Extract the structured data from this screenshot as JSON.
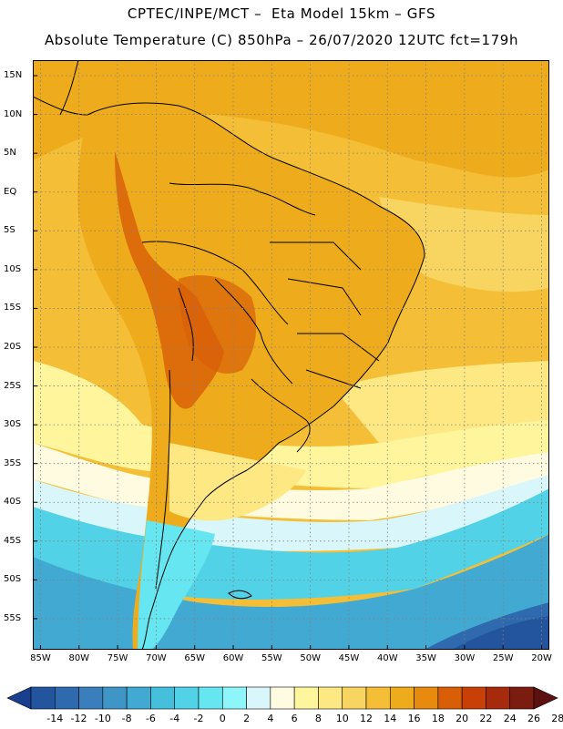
{
  "title": {
    "line1": "CPTEC/INPE/MCT –  Eta Model 15km – GFS",
    "line2": "Absolute Temperature (C) 850hPa – 26/07/2020 12UTC fct=179h"
  },
  "map": {
    "lon_range": [
      -86,
      -19
    ],
    "lat_range": [
      -59,
      17
    ],
    "lat_ticks": [
      "15N",
      "10N",
      "5N",
      "EQ",
      "5S",
      "10S",
      "15S",
      "20S",
      "25S",
      "30S",
      "35S",
      "40S",
      "45S",
      "50S",
      "55S"
    ],
    "lat_values": [
      15,
      10,
      5,
      0,
      -5,
      -10,
      -15,
      -20,
      -25,
      -30,
      -35,
      -40,
      -45,
      -50,
      -55
    ],
    "lon_ticks": [
      "85W",
      "80W",
      "75W",
      "70W",
      "65W",
      "60W",
      "55W",
      "50W",
      "45W",
      "40W",
      "35W",
      "30W",
      "25W",
      "20W"
    ],
    "lon_values": [
      -85,
      -80,
      -75,
      -70,
      -65,
      -60,
      -55,
      -50,
      -45,
      -40,
      -35,
      -30,
      -25,
      -20
    ],
    "grid": true
  },
  "colorbar": {
    "labels": [
      "-14",
      "-12",
      "-10",
      "-8",
      "-6",
      "-4",
      "-2",
      "0",
      "2",
      "4",
      "6",
      "8",
      "10",
      "12",
      "14",
      "16",
      "18",
      "20",
      "22",
      "24",
      "26",
      "28"
    ],
    "colors": [
      "#1a3f8f",
      "#23559f",
      "#2e6aad",
      "#3a7fbb",
      "#3f95c6",
      "#42aad2",
      "#45bfdc",
      "#52d2e6",
      "#66e6f0",
      "#8ef6fb",
      "#d9f7fb",
      "#fffbe0",
      "#fff59c",
      "#fde884",
      "#f8d460",
      "#f4bf36",
      "#eeac1d",
      "#e88a0e",
      "#d85e07",
      "#c84005",
      "#a62a0c",
      "#7a1c10",
      "#5c1010"
    ]
  }
}
